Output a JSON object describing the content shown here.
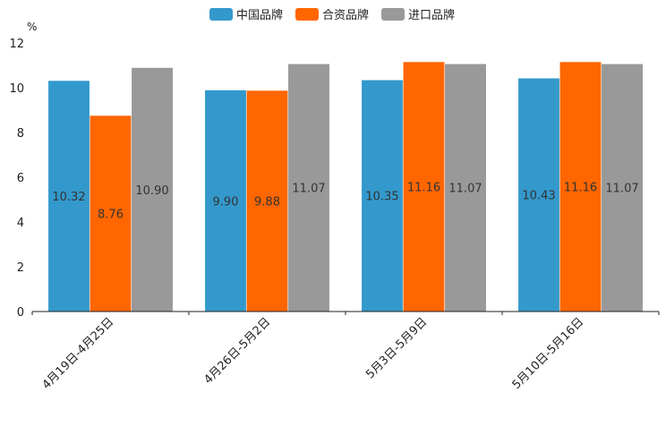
{
  "chart_data": {
    "type": "bar",
    "title": "",
    "unit": "%",
    "xlabel": "",
    "ylabel": "",
    "ylim": [
      0,
      12
    ],
    "yticks": [
      0,
      2,
      4,
      6,
      8,
      10,
      12
    ],
    "categories": [
      "4月19日-4月25日",
      "4月26日-5月2日",
      "5月3日-5月9日",
      "5月10日-5月16日"
    ],
    "series": [
      {
        "name": "中国品牌",
        "color": "#3399cc",
        "values": [
          10.32,
          9.9,
          10.35,
          10.43
        ],
        "labels": [
          "10.32",
          "9.90",
          "10.35",
          "10.43"
        ]
      },
      {
        "name": "合资品牌",
        "color": "#ff6600",
        "values": [
          8.76,
          9.88,
          11.16,
          11.16
        ],
        "labels": [
          "8.76",
          "9.88",
          "11.16",
          "11.16"
        ]
      },
      {
        "name": "进口品牌",
        "color": "#999999",
        "values": [
          10.9,
          11.07,
          11.07,
          11.07
        ],
        "labels": [
          "10.90",
          "11.07",
          "11.07",
          "11.07"
        ]
      }
    ],
    "legend_position": "top-center",
    "grid": false
  }
}
